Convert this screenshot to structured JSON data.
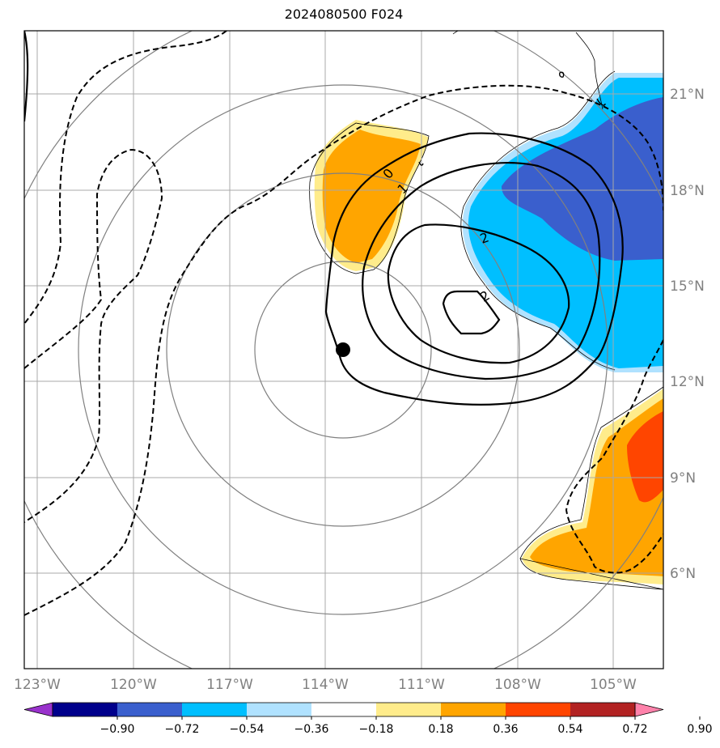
{
  "title": "2024080500 F024",
  "map": {
    "lon_ticks": [
      "123°W",
      "120°W",
      "117°W",
      "114°W",
      "111°W",
      "108°W",
      "105°W"
    ],
    "lat_ticks": [
      "21°N",
      "18°N",
      "15°N",
      "12°N",
      "9°N",
      "6°N"
    ],
    "contour_labels": [
      "0",
      "1",
      "2",
      "2"
    ],
    "center_marker": "storm-center-dot",
    "range_rings": 4
  },
  "colorbar": {
    "ticks": [
      "−0.90",
      "−0.72",
      "−0.54",
      "−0.36",
      "−0.18",
      "0.18",
      "0.36",
      "0.54",
      "0.72",
      "0.90"
    ],
    "colors": [
      "#9932cc",
      "#00008b",
      "#3a5fcd",
      "#00bfff",
      "#b0e2ff",
      "#ffffff",
      "#ffec8b",
      "#ffa500",
      "#ff4500",
      "#b22222",
      "#ff82ab"
    ]
  }
}
